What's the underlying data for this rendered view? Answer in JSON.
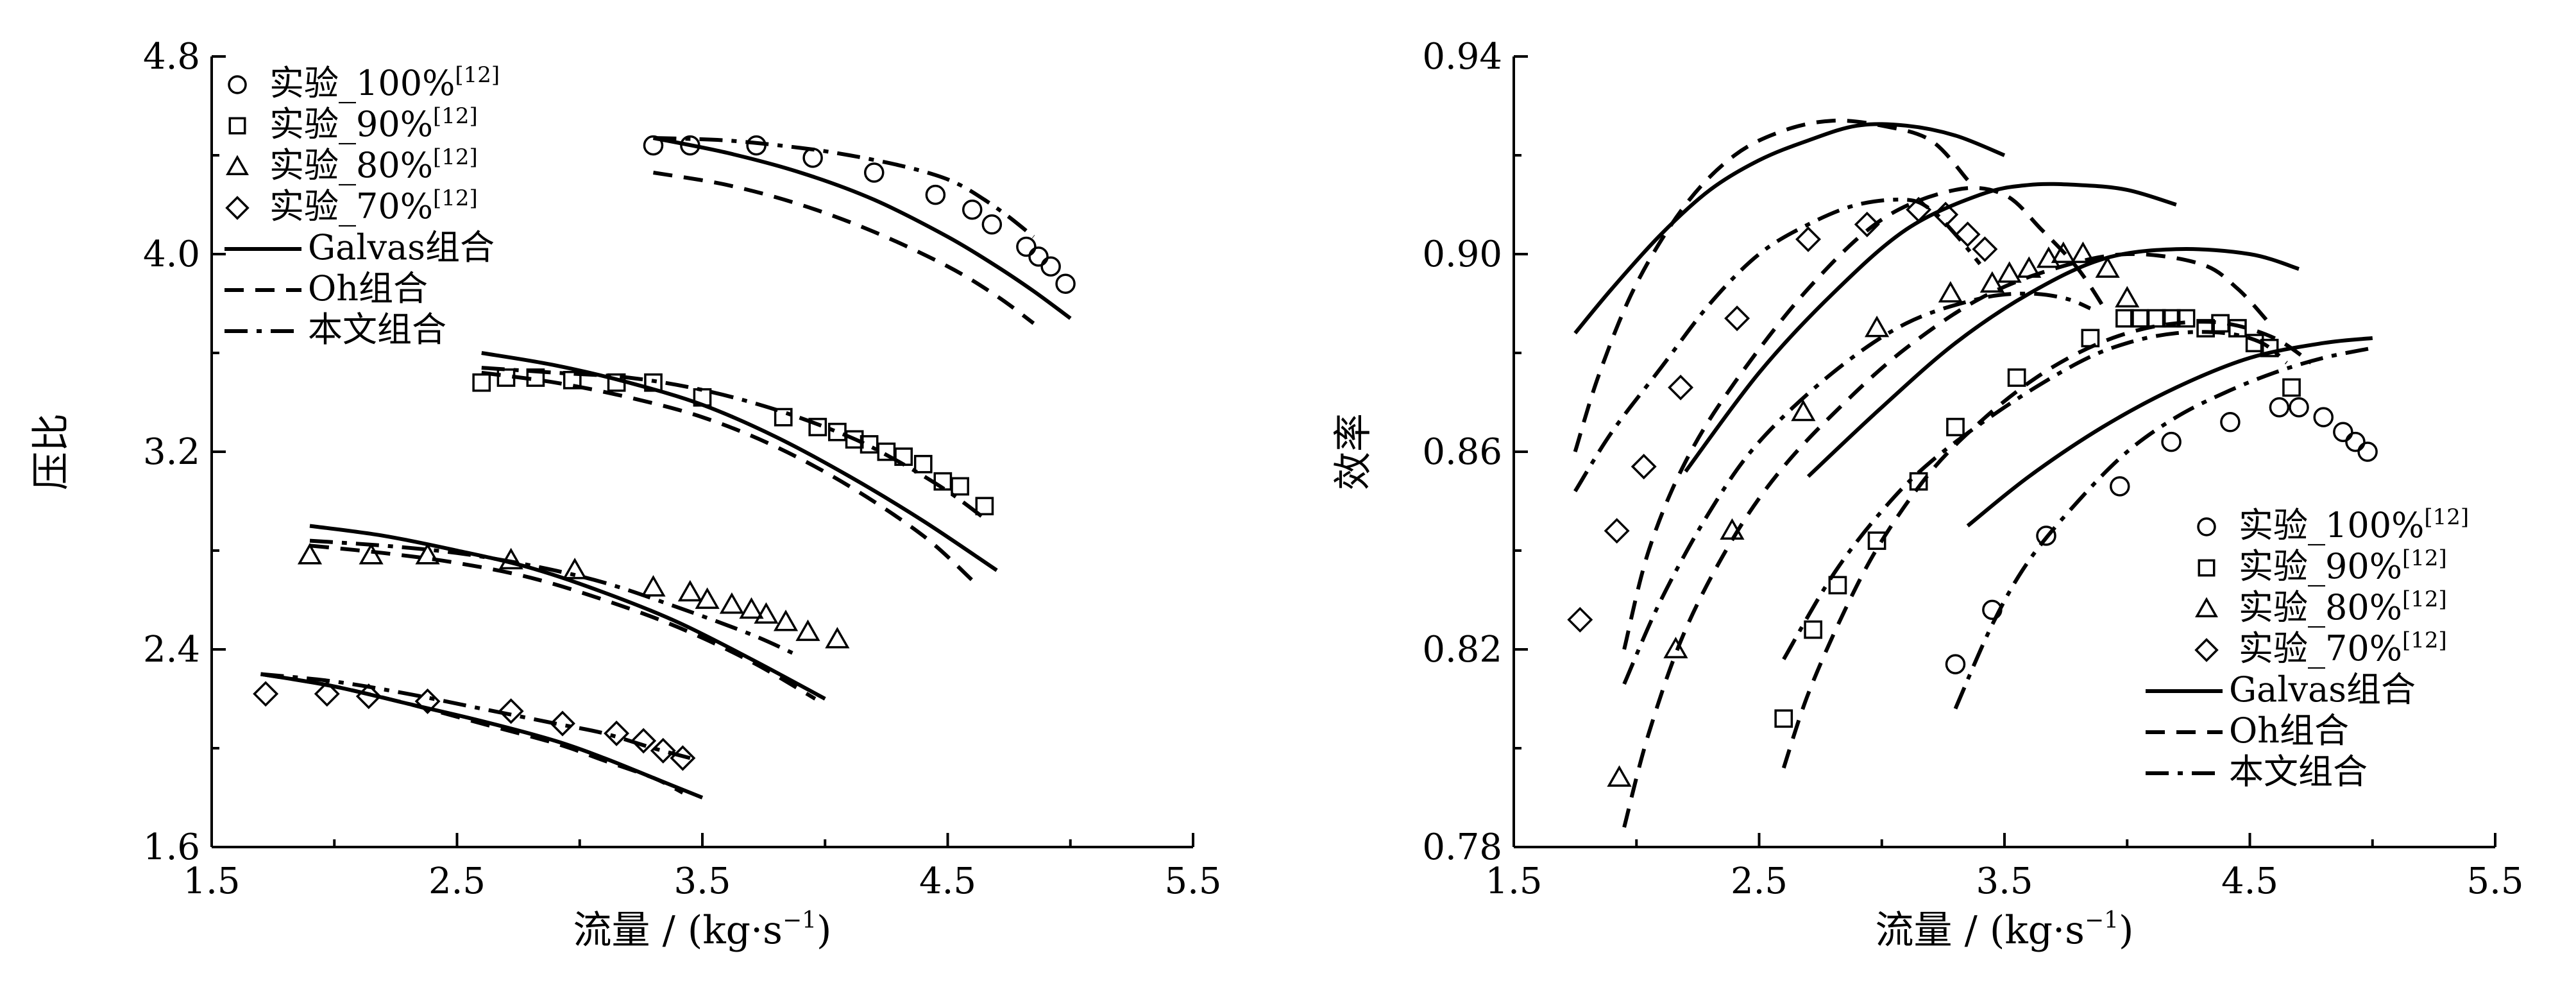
{
  "chart_data": [
    {
      "type": "scatter",
      "xlabel": "流量 / (kg·s⁻¹)",
      "ylabel": "压比",
      "xlim": [
        1.5,
        5.5
      ],
      "ylim": [
        1.6,
        4.8
      ],
      "xticks": [
        "1.5",
        "2.5",
        "3.5",
        "4.5",
        "5.5"
      ],
      "yticks": [
        "1.6",
        "2.4",
        "3.2",
        "4.0",
        "4.8"
      ],
      "legend_position": "top-left",
      "legend": [
        {
          "marker": "circle",
          "text": "实验_100%",
          "sup": "[12]"
        },
        {
          "marker": "square",
          "text": "实验_90%",
          "sup": "[12]"
        },
        {
          "marker": "triangle",
          "text": "实验_80%",
          "sup": "[12]"
        },
        {
          "marker": "diamond",
          "text": "实验_70%",
          "sup": "[12]"
        },
        {
          "line": "solid",
          "text": "Galvas组合"
        },
        {
          "line": "dash",
          "text": "Oh组合"
        },
        {
          "line": "dashdot",
          "text": "本文组合"
        }
      ],
      "series": [
        {
          "name": "实验_100%",
          "marker": "circle",
          "x": [
            3.3,
            3.45,
            3.72,
            3.95,
            4.2,
            4.45,
            4.6,
            4.68,
            4.82,
            4.87,
            4.92,
            4.98
          ],
          "y": [
            4.44,
            4.44,
            4.44,
            4.39,
            4.33,
            4.24,
            4.18,
            4.12,
            4.03,
            3.99,
            3.95,
            3.88
          ]
        },
        {
          "name": "实验_90%",
          "marker": "square",
          "x": [
            2.6,
            2.7,
            2.82,
            2.97,
            3.15,
            3.3,
            3.5,
            3.83,
            3.97,
            4.05,
            4.12,
            4.18,
            4.25,
            4.32,
            4.4,
            4.48,
            4.55,
            4.65
          ],
          "y": [
            3.48,
            3.5,
            3.5,
            3.49,
            3.48,
            3.48,
            3.42,
            3.34,
            3.3,
            3.28,
            3.25,
            3.23,
            3.2,
            3.18,
            3.15,
            3.08,
            3.06,
            2.98
          ]
        },
        {
          "name": "实验_80%",
          "marker": "triangle",
          "x": [
            1.9,
            2.15,
            2.38,
            2.72,
            2.98,
            3.3,
            3.45,
            3.52,
            3.62,
            3.7,
            3.76,
            3.84,
            3.93,
            4.05
          ],
          "y": [
            2.78,
            2.78,
            2.78,
            2.76,
            2.72,
            2.65,
            2.63,
            2.6,
            2.58,
            2.56,
            2.54,
            2.51,
            2.47,
            2.44
          ]
        },
        {
          "name": "实验_70%",
          "marker": "diamond",
          "x": [
            1.72,
            1.97,
            2.14,
            2.38,
            2.72,
            2.93,
            3.15,
            3.26,
            3.34,
            3.42
          ],
          "y": [
            2.22,
            2.22,
            2.21,
            2.19,
            2.15,
            2.1,
            2.06,
            2.03,
            1.99,
            1.96
          ]
        }
      ],
      "lines": [
        {
          "style": "solid",
          "x": [
            3.3,
            3.6,
            3.9,
            4.2,
            4.5,
            4.7,
            4.85,
            5.0
          ],
          "y": [
            4.47,
            4.41,
            4.33,
            4.22,
            4.07,
            3.95,
            3.85,
            3.74
          ]
        },
        {
          "style": "dash",
          "x": [
            3.3,
            3.6,
            3.9,
            4.2,
            4.5,
            4.7,
            4.85
          ],
          "y": [
            4.33,
            4.28,
            4.2,
            4.09,
            3.95,
            3.83,
            3.72
          ]
        },
        {
          "style": "dashdot",
          "x": [
            3.3,
            3.6,
            3.9,
            4.1,
            4.3,
            4.45,
            4.55,
            4.65,
            4.75,
            4.85
          ],
          "y": [
            4.47,
            4.46,
            4.43,
            4.4,
            4.36,
            4.32,
            4.28,
            4.22,
            4.15,
            4.07
          ]
        },
        {
          "style": "solid",
          "x": [
            2.6,
            2.9,
            3.2,
            3.5,
            3.8,
            4.1,
            4.4,
            4.7
          ],
          "y": [
            3.6,
            3.55,
            3.48,
            3.39,
            3.26,
            3.1,
            2.92,
            2.72
          ]
        },
        {
          "style": "dash",
          "x": [
            2.6,
            2.9,
            3.2,
            3.5,
            3.8,
            4.1,
            4.4,
            4.6
          ],
          "y": [
            3.52,
            3.48,
            3.42,
            3.34,
            3.22,
            3.06,
            2.86,
            2.68
          ]
        },
        {
          "style": "dashdot",
          "x": [
            2.6,
            2.9,
            3.2,
            3.5,
            3.8,
            4.1,
            4.3,
            4.5,
            4.65
          ],
          "y": [
            3.54,
            3.52,
            3.5,
            3.45,
            3.37,
            3.26,
            3.16,
            3.04,
            2.93
          ]
        },
        {
          "style": "solid",
          "x": [
            1.9,
            2.2,
            2.5,
            2.8,
            3.1,
            3.4,
            3.7,
            4.0
          ],
          "y": [
            2.9,
            2.86,
            2.8,
            2.73,
            2.63,
            2.51,
            2.36,
            2.2
          ]
        },
        {
          "style": "dash",
          "x": [
            1.9,
            2.2,
            2.5,
            2.8,
            3.1,
            3.4,
            3.7,
            3.96
          ],
          "y": [
            2.82,
            2.79,
            2.75,
            2.69,
            2.6,
            2.49,
            2.35,
            2.2
          ]
        },
        {
          "style": "dashdot",
          "x": [
            1.9,
            2.2,
            2.5,
            2.8,
            3.1,
            3.4,
            3.7,
            3.9
          ],
          "y": [
            2.84,
            2.82,
            2.79,
            2.74,
            2.67,
            2.57,
            2.46,
            2.37
          ]
        },
        {
          "style": "solid",
          "x": [
            1.7,
            2.0,
            2.3,
            2.6,
            2.9,
            3.1,
            3.3,
            3.5
          ],
          "y": [
            2.3,
            2.25,
            2.18,
            2.11,
            2.03,
            1.96,
            1.88,
            1.8
          ]
        },
        {
          "style": "dash",
          "x": [
            1.7,
            2.0,
            2.3,
            2.6,
            2.9,
            3.1,
            3.3,
            3.42
          ],
          "y": [
            2.3,
            2.25,
            2.18,
            2.1,
            2.02,
            1.95,
            1.88,
            1.82
          ]
        },
        {
          "style": "dashdot",
          "x": [
            1.7,
            2.0,
            2.3,
            2.6,
            2.9,
            3.1,
            3.3,
            3.45
          ],
          "y": [
            2.3,
            2.27,
            2.22,
            2.16,
            2.1,
            2.06,
            2.0,
            1.96
          ]
        }
      ]
    },
    {
      "type": "scatter",
      "xlabel": "流量 / (kg·s⁻¹)",
      "ylabel": "效率",
      "xlim": [
        1.5,
        5.5
      ],
      "ylim": [
        0.78,
        0.94
      ],
      "xticks": [
        "1.5",
        "2.5",
        "3.5",
        "4.5",
        "5.5"
      ],
      "yticks": [
        "0.78",
        "0.82",
        "0.86",
        "0.90",
        "0.94"
      ],
      "legend_position": "bottom-right",
      "legend": [
        {
          "marker": "circle",
          "text": "实验_100%",
          "sup": "[12]"
        },
        {
          "marker": "square",
          "text": "实验_90%",
          "sup": "[12]"
        },
        {
          "marker": "triangle",
          "text": "实验_80%",
          "sup": "[12]"
        },
        {
          "marker": "diamond",
          "text": "实验_70%",
          "sup": "[12]"
        },
        {
          "line": "solid",
          "text": "Galvas组合"
        },
        {
          "line": "dash",
          "text": "Oh组合"
        },
        {
          "line": "dashdot",
          "text": "本文组合"
        }
      ],
      "series": [
        {
          "name": "实验_100%",
          "marker": "circle",
          "x": [
            3.3,
            3.45,
            3.67,
            3.97,
            4.18,
            4.42,
            4.62,
            4.7,
            4.8,
            4.88,
            4.93,
            4.98
          ],
          "y": [
            0.817,
            0.828,
            0.843,
            0.853,
            0.862,
            0.866,
            0.869,
            0.869,
            0.867,
            0.864,
            0.862,
            0.86
          ]
        },
        {
          "name": "实验_90%",
          "marker": "square",
          "x": [
            2.6,
            2.72,
            2.82,
            2.98,
            3.15,
            3.3,
            3.55,
            3.85,
            3.99,
            4.05,
            4.12,
            4.18,
            4.24,
            4.32,
            4.38,
            4.45,
            4.52,
            4.58,
            4.67
          ],
          "y": [
            0.806,
            0.824,
            0.833,
            0.842,
            0.854,
            0.865,
            0.875,
            0.883,
            0.887,
            0.887,
            0.887,
            0.887,
            0.887,
            0.885,
            0.886,
            0.885,
            0.882,
            0.881,
            0.873
          ]
        },
        {
          "name": "实验_80%",
          "marker": "triangle",
          "x": [
            1.93,
            2.16,
            2.39,
            2.68,
            2.98,
            3.28,
            3.45,
            3.52,
            3.6,
            3.68,
            3.74,
            3.82,
            3.92,
            4.0
          ],
          "y": [
            0.794,
            0.82,
            0.844,
            0.868,
            0.885,
            0.892,
            0.894,
            0.896,
            0.897,
            0.899,
            0.9,
            0.9,
            0.897,
            0.891
          ]
        },
        {
          "name": "实验_70%",
          "marker": "diamond",
          "x": [
            1.77,
            1.92,
            2.03,
            2.18,
            2.41,
            2.7,
            2.94,
            3.15,
            3.26,
            3.35,
            3.42
          ],
          "y": [
            0.826,
            0.844,
            0.857,
            0.873,
            0.887,
            0.903,
            0.906,
            0.909,
            0.908,
            0.904,
            0.901
          ]
        }
      ],
      "lines": [
        {
          "style": "solid",
          "x": [
            1.75,
            1.9,
            2.1,
            2.3,
            2.5,
            2.7,
            2.9,
            3.1,
            3.3,
            3.5
          ],
          "y": [
            0.884,
            0.893,
            0.904,
            0.913,
            0.919,
            0.923,
            0.926,
            0.926,
            0.924,
            0.92
          ]
        },
        {
          "style": "dash",
          "x": [
            1.75,
            1.85,
            2.0,
            2.2,
            2.4,
            2.6,
            2.8,
            3.0,
            3.2,
            3.35
          ],
          "y": [
            0.86,
            0.876,
            0.894,
            0.91,
            0.92,
            0.925,
            0.927,
            0.926,
            0.923,
            0.915
          ]
        },
        {
          "style": "dashdot",
          "x": [
            1.75,
            1.9,
            2.1,
            2.3,
            2.5,
            2.7,
            2.9,
            3.1,
            3.2,
            3.3,
            3.4
          ],
          "y": [
            0.852,
            0.864,
            0.877,
            0.89,
            0.9,
            0.906,
            0.91,
            0.911,
            0.909,
            0.904,
            0.898
          ]
        },
        {
          "style": "solid",
          "x": [
            2.2,
            2.5,
            2.8,
            3.1,
            3.4,
            3.6,
            3.8,
            4.0,
            4.2
          ],
          "y": [
            0.856,
            0.876,
            0.892,
            0.905,
            0.912,
            0.914,
            0.914,
            0.913,
            0.91
          ]
        },
        {
          "style": "dash",
          "x": [
            1.95,
            2.05,
            2.2,
            2.4,
            2.7,
            3.0,
            3.3,
            3.5,
            3.65,
            3.8,
            3.92
          ],
          "y": [
            0.82,
            0.84,
            0.858,
            0.874,
            0.893,
            0.907,
            0.913,
            0.912,
            0.905,
            0.897,
            0.888
          ]
        },
        {
          "style": "dashdot",
          "x": [
            1.95,
            2.1,
            2.3,
            2.5,
            2.8,
            3.1,
            3.4,
            3.6,
            3.75,
            3.85
          ],
          "y": [
            0.813,
            0.83,
            0.848,
            0.862,
            0.876,
            0.886,
            0.891,
            0.892,
            0.891,
            0.889
          ]
        },
        {
          "style": "solid",
          "x": [
            2.7,
            3.0,
            3.3,
            3.6,
            3.9,
            4.2,
            4.5,
            4.7
          ],
          "y": [
            0.855,
            0.869,
            0.882,
            0.892,
            0.899,
            0.901,
            0.9,
            0.897
          ]
        },
        {
          "style": "dash",
          "x": [
            1.95,
            2.05,
            2.2,
            2.4,
            2.6,
            2.85,
            3.1,
            3.4,
            3.7,
            4.0,
            4.3,
            4.45,
            4.58
          ],
          "y": [
            0.784,
            0.803,
            0.824,
            0.843,
            0.857,
            0.87,
            0.881,
            0.891,
            0.897,
            0.9,
            0.898,
            0.893,
            0.886
          ]
        },
        {
          "style": "dashdot",
          "x": [
            2.6,
            2.8,
            3.0,
            3.2,
            3.5,
            3.8,
            4.0,
            4.2,
            4.4,
            4.55,
            4.65
          ],
          "y": [
            0.818,
            0.835,
            0.848,
            0.858,
            0.869,
            0.878,
            0.882,
            0.884,
            0.884,
            0.882,
            0.878
          ]
        },
        {
          "style": "solid",
          "x": [
            3.35,
            3.6,
            3.9,
            4.2,
            4.5,
            4.8,
            5.0
          ],
          "y": [
            0.845,
            0.855,
            0.865,
            0.873,
            0.879,
            0.882,
            0.883
          ]
        },
        {
          "style": "dash",
          "x": [
            2.6,
            2.7,
            2.85,
            3.0,
            3.2,
            3.4,
            3.6,
            3.8,
            4.0,
            4.2,
            4.4,
            4.6,
            4.75
          ],
          "y": [
            0.796,
            0.811,
            0.828,
            0.842,
            0.856,
            0.866,
            0.874,
            0.88,
            0.884,
            0.886,
            0.886,
            0.883,
            0.878
          ]
        },
        {
          "style": "dashdot",
          "x": [
            3.3,
            3.45,
            3.6,
            3.8,
            4.0,
            4.2,
            4.4,
            4.6,
            4.8,
            5.0
          ],
          "y": [
            0.808,
            0.825,
            0.838,
            0.85,
            0.86,
            0.867,
            0.872,
            0.876,
            0.879,
            0.881
          ]
        }
      ]
    }
  ]
}
